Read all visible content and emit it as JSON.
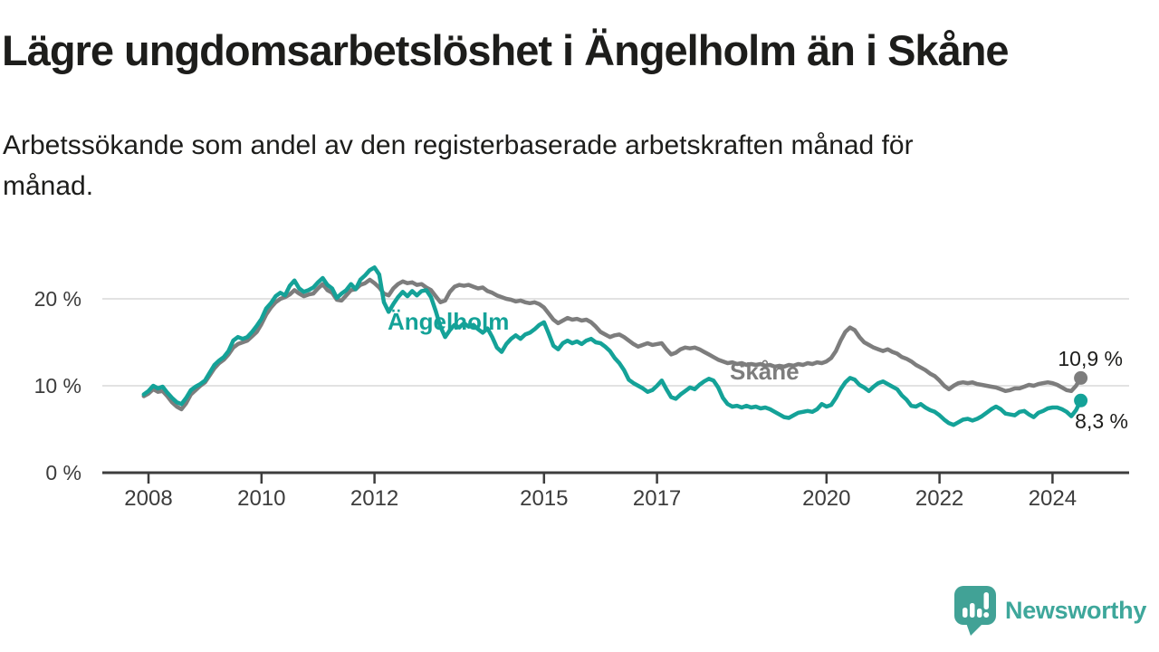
{
  "header": {
    "title": "Lägre ungdomsarbetslöshet i Ängelholm än i Skåne",
    "subtitle": "Arbetssökande som andel av den registerbaserade arbetskraften månad för månad.",
    "subtitle_lines": [
      "Arbetssökande som andel av den registerbaserade arbetskraften månad för",
      "månad."
    ]
  },
  "chart_data": {
    "type": "line",
    "title": "Lägre ungdomsarbetslöshet i Ängelholm än i Skåne",
    "subtitle": "Arbetssökande som andel av den registerbaserade arbetskraften månad för månad.",
    "unit": "%",
    "grid": "horizontal-only",
    "ylim": [
      0,
      24
    ],
    "x_range_years": [
      2007.92,
      2024.5
    ],
    "y_ticks": [
      {
        "value": 20,
        "label": "20 %"
      },
      {
        "value": 10,
        "label": "10 %"
      },
      {
        "value": 0,
        "label": "0 %"
      }
    ],
    "x_ticks": [
      {
        "year": 2008,
        "label": "2008"
      },
      {
        "year": 2010,
        "label": "2010"
      },
      {
        "year": 2012,
        "label": "2012"
      },
      {
        "year": 2015,
        "label": "2015"
      },
      {
        "year": 2017,
        "label": "2017"
      },
      {
        "year": 2020,
        "label": "2020"
      },
      {
        "year": 2022,
        "label": "2022"
      },
      {
        "year": 2024,
        "label": "2024"
      }
    ],
    "series_start": "2007-12",
    "series_interval": "monthly",
    "series": [
      {
        "id": "skane",
        "name": "Skåne",
        "color": "#7d7d7d",
        "end_value": 10.9,
        "end_label": "10,9 %",
        "values": [
          8.8,
          9.1,
          9.6,
          9.3,
          9.4,
          8.8,
          8.1,
          7.6,
          7.3,
          8.0,
          9.0,
          9.5,
          10.0,
          10.4,
          11.2,
          12.0,
          12.6,
          13.0,
          13.6,
          14.4,
          14.8,
          15.0,
          15.2,
          15.7,
          16.2,
          17.1,
          18.2,
          19.0,
          19.6,
          20.0,
          20.2,
          20.5,
          21.0,
          20.6,
          20.3,
          20.5,
          20.6,
          21.2,
          21.7,
          21.0,
          20.7,
          19.9,
          19.8,
          20.4,
          21.0,
          21.1,
          21.6,
          21.8,
          22.2,
          21.8,
          21.3,
          20.6,
          20.4,
          21.2,
          21.7,
          22.0,
          21.8,
          21.9,
          21.6,
          21.7,
          21.3,
          21.0,
          20.3,
          19.6,
          19.8,
          20.8,
          21.4,
          21.6,
          21.5,
          21.6,
          21.4,
          21.2,
          21.3,
          20.9,
          20.7,
          20.4,
          20.2,
          20.0,
          19.9,
          19.7,
          19.8,
          19.6,
          19.5,
          19.6,
          19.4,
          19.0,
          18.3,
          17.6,
          17.2,
          17.5,
          17.8,
          17.6,
          17.7,
          17.5,
          17.6,
          17.3,
          16.8,
          16.2,
          15.9,
          15.6,
          15.8,
          15.9,
          15.6,
          15.2,
          14.8,
          14.5,
          14.7,
          14.9,
          14.7,
          14.8,
          14.9,
          14.2,
          13.6,
          13.8,
          14.2,
          14.4,
          14.3,
          14.4,
          14.2,
          13.9,
          13.6,
          13.3,
          13.0,
          12.8,
          12.6,
          12.7,
          12.5,
          12.6,
          12.4,
          12.5,
          12.4,
          12.5,
          12.3,
          12.4,
          12.2,
          12.3,
          12.2,
          12.4,
          12.3,
          12.5,
          12.4,
          12.6,
          12.5,
          12.7,
          12.6,
          12.8,
          13.2,
          14.0,
          15.2,
          16.2,
          16.7,
          16.4,
          15.6,
          15.0,
          14.7,
          14.4,
          14.2,
          14.0,
          14.2,
          13.9,
          13.7,
          13.3,
          13.1,
          12.8,
          12.4,
          12.1,
          11.8,
          11.4,
          11.1,
          10.6,
          10.0,
          9.6,
          10.0,
          10.3,
          10.4,
          10.3,
          10.4,
          10.2,
          10.1,
          10.0,
          9.9,
          9.8,
          9.6,
          9.4,
          9.5,
          9.7,
          9.7,
          9.9,
          10.1,
          10.0,
          10.2,
          10.3,
          10.4,
          10.3,
          10.1,
          9.8,
          9.5,
          9.4,
          10.0,
          10.9
        ]
      },
      {
        "id": "angelholm",
        "name": "Ängelholm",
        "color": "#14a298",
        "end_value": 8.3,
        "end_label": "8,3 %",
        "values": [
          9.0,
          9.4,
          10.0,
          9.7,
          9.9,
          9.2,
          8.6,
          8.1,
          7.9,
          8.6,
          9.5,
          9.9,
          10.2,
          10.6,
          11.5,
          12.4,
          12.9,
          13.3,
          14.0,
          15.2,
          15.6,
          15.4,
          15.6,
          16.2,
          16.9,
          17.7,
          18.9,
          19.5,
          20.3,
          20.7,
          20.4,
          21.5,
          22.1,
          21.2,
          20.8,
          21.0,
          21.3,
          21.9,
          22.4,
          21.6,
          21.2,
          20.1,
          20.6,
          21.0,
          21.7,
          21.1,
          22.2,
          22.7,
          23.3,
          23.6,
          22.8,
          19.6,
          18.5,
          19.4,
          20.2,
          20.8,
          20.3,
          20.9,
          20.4,
          20.9,
          21.0,
          20.2,
          18.6,
          16.8,
          15.6,
          16.4,
          17.0,
          16.7,
          17.2,
          16.8,
          17.0,
          16.5,
          16.1,
          16.6,
          15.6,
          14.4,
          13.9,
          14.8,
          15.4,
          15.8,
          15.4,
          15.9,
          16.1,
          16.5,
          17.0,
          17.3,
          16.0,
          14.6,
          14.2,
          14.9,
          15.2,
          14.9,
          15.1,
          14.8,
          15.2,
          15.4,
          15.0,
          14.9,
          14.5,
          14.0,
          13.2,
          12.6,
          11.8,
          10.7,
          10.3,
          10.0,
          9.7,
          9.3,
          9.5,
          10.0,
          10.6,
          9.6,
          8.7,
          8.5,
          9.0,
          9.4,
          9.8,
          9.6,
          10.1,
          10.5,
          10.8,
          10.6,
          9.8,
          8.6,
          7.9,
          7.6,
          7.7,
          7.5,
          7.7,
          7.5,
          7.6,
          7.4,
          7.5,
          7.3,
          7.0,
          6.7,
          6.4,
          6.3,
          6.6,
          6.9,
          7.0,
          7.1,
          7.0,
          7.3,
          7.9,
          7.6,
          7.8,
          8.6,
          9.6,
          10.4,
          10.9,
          10.7,
          10.1,
          9.8,
          9.4,
          9.9,
          10.3,
          10.5,
          10.2,
          9.9,
          9.6,
          8.9,
          8.4,
          7.7,
          7.6,
          7.9,
          7.5,
          7.2,
          7.0,
          6.6,
          6.1,
          5.7,
          5.5,
          5.8,
          6.1,
          6.2,
          6.0,
          6.2,
          6.5,
          6.9,
          7.3,
          7.6,
          7.3,
          6.8,
          6.7,
          6.6,
          7.0,
          7.1,
          6.7,
          6.4,
          6.9,
          7.1,
          7.4,
          7.5,
          7.5,
          7.3,
          7.0,
          6.5,
          7.2,
          8.3
        ]
      }
    ]
  },
  "footer": {
    "brand": "Newsworthy",
    "logo_color": "#41a296",
    "text_color": "#3ea79b"
  }
}
